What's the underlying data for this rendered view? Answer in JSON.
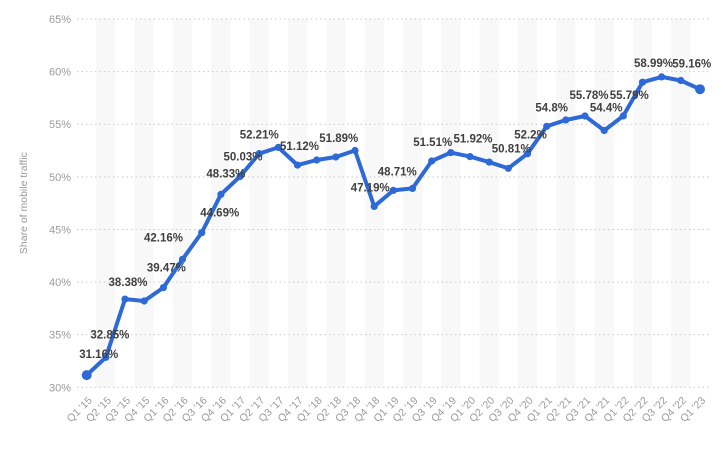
{
  "chart_data": {
    "type": "line",
    "title": "",
    "xlabel": "",
    "ylabel": "Share of mobile traffic",
    "ylim": [
      30,
      65
    ],
    "ytick_step": 5,
    "yticks": [
      "30%",
      "35%",
      "40%",
      "45%",
      "50%",
      "55%",
      "60%",
      "65%"
    ],
    "grid": "horizontal-dotted",
    "legend_position": "none",
    "plot_bands": "alternating-vertical",
    "categories": [
      "Q1 '15",
      "Q2 '15",
      "Q3 '15",
      "Q4 '15",
      "Q1 '16",
      "Q2 '16",
      "Q3 '16",
      "Q4 '16",
      "Q1 '17",
      "Q2 '17",
      "Q3 '17",
      "Q4 '17",
      "Q1 '18",
      "Q2 '18",
      "Q3 '18",
      "Q4 '18",
      "Q1 '19",
      "Q2 '19",
      "Q3 '19",
      "Q4 '19",
      "Q1 '20",
      "Q2 '20",
      "Q3 '20",
      "Q4 '20",
      "Q1 '21",
      "Q2 '21",
      "Q3 '21",
      "Q4 '21",
      "Q1 '22",
      "Q2 '22",
      "Q3 '22",
      "Q4 '22",
      "Q1 '23"
    ],
    "values": [
      31.16,
      32.85,
      38.38,
      38.2,
      39.47,
      42.16,
      44.69,
      48.33,
      50.03,
      52.21,
      52.8,
      51.12,
      51.6,
      51.89,
      52.5,
      47.19,
      48.71,
      48.9,
      51.51,
      52.3,
      51.92,
      51.4,
      50.81,
      52.2,
      54.8,
      55.4,
      55.78,
      54.4,
      55.79,
      58.99,
      59.5,
      59.16,
      58.33
    ],
    "point_labels": [
      "31.16%",
      "32.85%",
      "38.38%",
      null,
      "39.47%",
      "42.16%",
      "44.69%",
      "48.33%",
      "50.03%",
      "52.21%",
      null,
      "51.12%",
      null,
      "51.89%",
      null,
      "47.19%",
      "48.71%",
      null,
      "51.51%",
      null,
      "51.92%",
      null,
      "50.81%",
      "52.2%",
      "54.8%",
      null,
      "55.78%",
      "54.4%",
      "55.79%",
      "58.99%",
      null,
      "59.16%",
      null
    ],
    "label_offsets": [
      [
        12,
        -21
      ],
      [
        4,
        -23
      ],
      [
        3,
        -17
      ],
      null,
      [
        3,
        -20
      ],
      [
        -19,
        -22
      ],
      [
        18,
        -20
      ],
      [
        5,
        -21
      ],
      [
        3,
        -20
      ],
      [
        0,
        -19
      ],
      null,
      [
        2,
        -19
      ],
      null,
      [
        3,
        -19
      ],
      null,
      [
        -4,
        -19
      ],
      [
        4,
        -19
      ],
      null,
      [
        1,
        -19
      ],
      null,
      [
        3,
        -18
      ],
      null,
      [
        3,
        -20
      ],
      [
        3,
        -19
      ],
      [
        5,
        -19
      ],
      null,
      [
        4,
        -21
      ],
      [
        2,
        -23
      ],
      [
        6,
        -21
      ],
      [
        11,
        -19
      ],
      null,
      [
        11,
        -17
      ],
      null
    ],
    "colors": {
      "line": "#2d69d7",
      "marker": "#2d69d7",
      "data_label": "#3f3f3f",
      "axis_text": "#9b9b9b",
      "grid_line": "#c9c9c9",
      "plot_band": "#f8f8f8",
      "background": "#ffffff"
    }
  }
}
